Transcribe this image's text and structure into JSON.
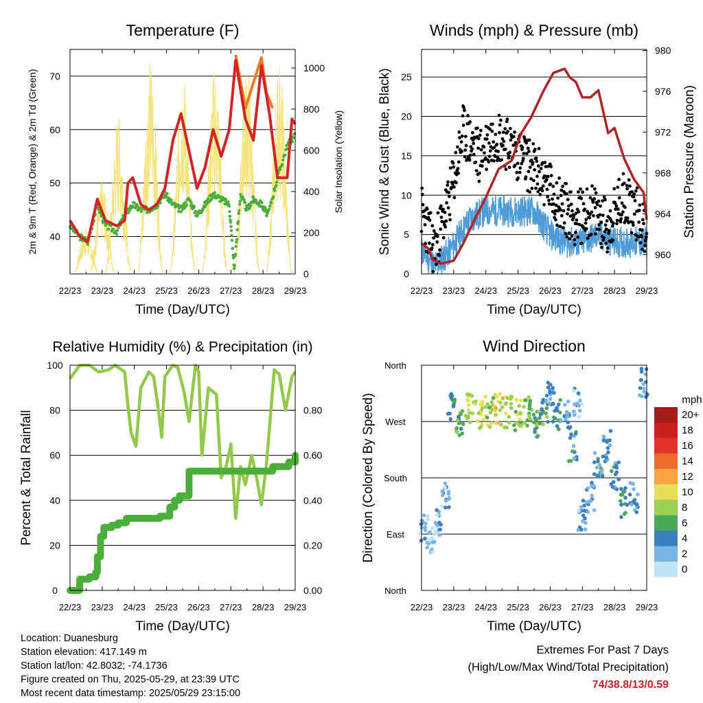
{
  "chart_data": [
    {
      "type": "line",
      "title": "Temperature (F)",
      "xlabel": "Time (Day/UTC)",
      "ylabel": "2m & 9m T (Red, Orange) & 2m Td (Green)",
      "y2label": "Solar Insolation (Yellow)",
      "x_ticks": [
        "22/23",
        "23/23",
        "24/23",
        "25/23",
        "26/23",
        "27/23",
        "28/23",
        "29/23"
      ],
      "y_ticks": [
        40,
        50,
        60,
        70
      ],
      "y2_ticks": [
        0,
        200,
        400,
        600,
        800,
        1000
      ],
      "xlim": [
        0,
        7
      ],
      "ylim": [
        33,
        75
      ],
      "y2lim": [
        0,
        1090
      ],
      "grid": true,
      "colors": {
        "t2m": "#d42323",
        "t9m": "#f07a20",
        "td": "#4cae3a",
        "solar": "#f6e27a"
      },
      "series": [
        {
          "name": "2m T (Red)",
          "x": [
            0,
            0.3,
            0.55,
            0.85,
            1.1,
            1.45,
            1.7,
            1.8,
            1.95,
            2.2,
            2.45,
            2.7,
            2.95,
            3.2,
            3.45,
            3.7,
            3.95,
            4.2,
            4.45,
            4.7,
            4.95,
            5.15,
            5.45,
            5.7,
            5.95,
            6.2,
            6.45,
            6.75,
            6.9,
            7
          ],
          "y": [
            43,
            40,
            39,
            47,
            43,
            42,
            43,
            50,
            51,
            46,
            45,
            46,
            49,
            58,
            63,
            56,
            49,
            53,
            60,
            55,
            60,
            73,
            62,
            58,
            72,
            63,
            51,
            51,
            62,
            61
          ]
        },
        {
          "name": "9m T (Orange)",
          "x": [
            5.15,
            5.45,
            5.95,
            6.1,
            6.3
          ],
          "y": [
            74,
            64,
            73.5,
            67,
            64
          ]
        },
        {
          "name": "2m Td (Green)",
          "x": [
            0,
            0.3,
            0.55,
            0.85,
            1.1,
            1.45,
            1.7,
            1.95,
            2.2,
            2.45,
            2.7,
            2.95,
            3.2,
            3.45,
            3.7,
            3.95,
            4.2,
            4.45,
            4.7,
            4.95,
            5.1,
            5.3,
            5.5,
            5.7,
            5.95,
            6.15,
            6.45,
            6.75,
            7
          ],
          "y": [
            42,
            40,
            39,
            46,
            42,
            41,
            44,
            46,
            45,
            45,
            46,
            48,
            46,
            45,
            47,
            44,
            46,
            48,
            47,
            46,
            34,
            48,
            45,
            47,
            46,
            44,
            51,
            57,
            59
          ]
        },
        {
          "name": "Solar Insolation (Yellow)",
          "x": [
            0.5,
            1.0,
            1.5,
            2.5,
            3.5,
            4.5,
            5.5,
            6.5
          ],
          "y": [
            230,
            450,
            780,
            1050,
            1000,
            1020,
            1030,
            1050
          ]
        }
      ]
    },
    {
      "type": "scatter",
      "title": "Winds (mph) & Pressure (mb)",
      "xlabel": "Time (Day/UTC)",
      "ylabel": "Sonic Wind & Gust (Blue, Black)",
      "y2label": "Station Pressure (Maroon)",
      "x_ticks": [
        "22/23",
        "23/23",
        "24/23",
        "25/23",
        "26/23",
        "27/23",
        "28/23",
        "29/23"
      ],
      "y_ticks": [
        0,
        5,
        10,
        15,
        20,
        25
      ],
      "y2_ticks": [
        960,
        964,
        968,
        972,
        976,
        980
      ],
      "xlim": [
        0,
        7
      ],
      "ylim": [
        0,
        28.5
      ],
      "y2lim": [
        958.1,
        980.1
      ],
      "grid": true,
      "colors": {
        "wind": "#4f9bd8",
        "gust": "#000000",
        "pressure": "#b02323"
      },
      "series": [
        {
          "name": "Sonic Wind (Blue)",
          "x": [
            0,
            0.4,
            0.9,
            1.5,
            2,
            2.5,
            3,
            3.5,
            4,
            4.5,
            5,
            5.5,
            6,
            6.5,
            7
          ],
          "y": [
            3,
            1,
            3,
            7,
            8,
            8,
            8,
            8,
            5,
            4,
            4,
            5,
            4,
            4,
            4
          ]
        },
        {
          "name": "Gust (Black)",
          "x": [
            0,
            0.4,
            0.9,
            1.3,
            1.8,
            2.3,
            2.8,
            3.3,
            3.8,
            4.3,
            4.8,
            5.3,
            5.8,
            6.3,
            6.8,
            7
          ],
          "y": [
            8,
            3,
            10,
            18,
            15,
            18,
            16,
            14,
            12,
            9,
            7,
            8,
            6,
            10,
            7,
            5
          ]
        },
        {
          "name": "Station Pressure (Maroon)",
          "x": [
            0,
            0.2,
            0.35,
            0.6,
            1.0,
            1.3,
            1.6,
            2.0,
            2.4,
            2.8,
            3.1,
            3.4,
            3.8,
            4.1,
            4.45,
            4.6,
            4.8,
            5.0,
            5.25,
            5.5,
            5.8,
            6.0,
            6.3,
            6.6,
            6.9,
            7
          ],
          "y": [
            961.1,
            960.6,
            959.5,
            959.1,
            959.4,
            961.1,
            963.1,
            965.6,
            968.4,
            969.2,
            971.9,
            973.4,
            976.1,
            977.8,
            978.2,
            977.4,
            976.9,
            975.4,
            975.4,
            976.1,
            971.9,
            972.4,
            969.4,
            967.4,
            966.1,
            963.4
          ]
        }
      ]
    },
    {
      "type": "line",
      "title": "Relative Humidity (%) & Precipitation (in)",
      "xlabel": "Time (Day/UTC)",
      "ylabel": "Percent & Total Rainfall",
      "x_ticks": [
        "22/23",
        "23/23",
        "24/23",
        "25/23",
        "26/23",
        "27/23",
        "28/23",
        "29/23"
      ],
      "y_ticks": [
        0,
        20,
        40,
        60,
        80,
        100
      ],
      "y2_ticks": [
        "0.00",
        "0.20",
        "0.40",
        "0.60",
        "0.80"
      ],
      "xlim": [
        0,
        7
      ],
      "ylim": [
        0,
        100
      ],
      "y2lim": [
        0,
        1.0
      ],
      "grid": true,
      "colors": {
        "rh": "#92c94a",
        "precip": "#4cae3a"
      },
      "series": [
        {
          "name": "Relative Humidity",
          "x": [
            0,
            0.15,
            0.3,
            0.6,
            0.9,
            1.2,
            1.4,
            1.7,
            1.8,
            1.9,
            2.05,
            2.2,
            2.45,
            2.6,
            2.75,
            2.85,
            2.95,
            3.2,
            3.35,
            3.55,
            3.7,
            3.9,
            4.0,
            4.1,
            4.3,
            4.55,
            4.7,
            4.85,
            5.0,
            5.15,
            5.3,
            5.45,
            5.65,
            5.8,
            5.95,
            6.1,
            6.35,
            6.5,
            6.7,
            6.9,
            7
          ],
          "y": [
            94,
            97,
            100,
            100,
            97,
            98,
            100,
            97,
            82,
            70,
            64,
            90,
            97,
            95,
            80,
            68,
            95,
            100,
            99,
            88,
            75,
            100,
            97,
            60,
            90,
            87,
            50,
            55,
            65,
            32,
            55,
            47,
            60,
            50,
            38,
            55,
            98,
            96,
            80,
            95,
            97
          ]
        },
        {
          "name": "Total Precipitation",
          "x": [
            0,
            0.2,
            0.3,
            0.6,
            0.8,
            0.85,
            0.95,
            1.05,
            1.3,
            1.5,
            1.75,
            2.0,
            2.2,
            2.8,
            3.0,
            3.1,
            3.25,
            3.4,
            3.6,
            3.7,
            4.0,
            4.3,
            4.6,
            5.0,
            5.5,
            5.9,
            6.3,
            6.5,
            6.8,
            7
          ],
          "y": [
            0,
            0,
            0.05,
            0.06,
            0.08,
            0.15,
            0.24,
            0.28,
            0.29,
            0.3,
            0.32,
            0.32,
            0.32,
            0.33,
            0.33,
            0.37,
            0.4,
            0.42,
            0.42,
            0.53,
            0.53,
            0.53,
            0.53,
            0.53,
            0.53,
            0.53,
            0.55,
            0.55,
            0.57,
            0.6
          ]
        }
      ]
    },
    {
      "type": "scatter",
      "title": "Wind Direction",
      "xlabel": "Time (Day/UTC)",
      "ylabel": "Direction (Colored By Speed)",
      "x_ticks": [
        "22/23",
        "23/23",
        "24/23",
        "25/23",
        "26/23",
        "27/23",
        "28/23",
        "29/23"
      ],
      "y_ticks": [
        "North",
        "East",
        "South",
        "West",
        "North"
      ],
      "xlim": [
        0,
        7
      ],
      "ylim": [
        0,
        360
      ],
      "grid": true,
      "legend": {
        "title": "mph",
        "labels": [
          "20+",
          "18",
          "16",
          "14",
          "12",
          "10",
          "8",
          "6",
          "4",
          "2",
          "0"
        ],
        "colors": [
          "#a51c1c",
          "#c82020",
          "#e0352b",
          "#f06a2a",
          "#f8a33e",
          "#e6df55",
          "#9bcf52",
          "#4aa85b",
          "#3b7fbf",
          "#79b5e4",
          "#bde4f8"
        ],
        "placement": "right"
      },
      "series": [
        {
          "name": "Wind Direction",
          "x": [
            0.1,
            0.3,
            0.5,
            0.75,
            0.9,
            1.2,
            1.5,
            1.8,
            2.1,
            2.4,
            2.7,
            3.0,
            3.3,
            3.6,
            3.8,
            4.0,
            4.2,
            4.5,
            4.7,
            4.85,
            5.0,
            5.25,
            5.5,
            5.75,
            6.0,
            6.3,
            6.6,
            6.9
          ],
          "y": [
            95,
            75,
            110,
            150,
            290,
            270,
            290,
            280,
            285,
            290,
            285,
            280,
            285,
            270,
            280,
            320,
            280,
            280,
            230,
            300,
            120,
            150,
            200,
            230,
            180,
            140,
            150,
            330
          ],
          "speeds": [
            2,
            1,
            2,
            2,
            5,
            6,
            8,
            9,
            8,
            10,
            9,
            8,
            7,
            6,
            6,
            3,
            4,
            3,
            4,
            2,
            2,
            3,
            4,
            3,
            4,
            5,
            3,
            3
          ]
        }
      ]
    }
  ],
  "info": {
    "location": "Location: Duanesburg",
    "elevation": "Station elevation: 417.149 m",
    "latlon": "Station lat/lon: 42.8032; -74.1736",
    "created": "Figure created on Thu, 2025-05-29, at 23:39 UTC",
    "recent": "Most recent data timestamp: 2025/05/29 23:15:00"
  },
  "extremes": {
    "heading": "Extremes For Past 7 Days",
    "subheading": "(High/Low/Max Wind/Total Precipitation)",
    "values": "74/38.8/13/0.59",
    "color": "#c8202a"
  }
}
